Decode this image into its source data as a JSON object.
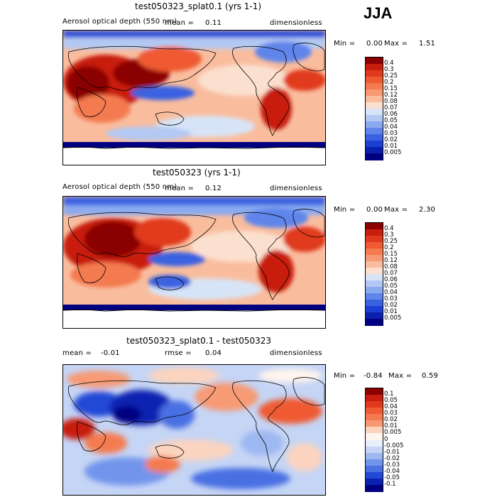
{
  "season": "JJA",
  "panels": [
    {
      "title": "test050323_splat0.1 (yrs 1-1)",
      "variable": "Aerosol optical depth (550 nm)",
      "mean_label": "mean =",
      "mean_value": "0.11",
      "units": "dimensionless",
      "min_label": "Min =",
      "min_value": "0.00",
      "max_label": "Max =",
      "max_value": "1.51",
      "kind": "abs",
      "colorbar": {
        "labels": [
          "0.4",
          "0.3",
          "0.25",
          "0.2",
          "0.15",
          "0.12",
          "0.08",
          "0.07",
          "0.06",
          "0.05",
          "0.04",
          "0.03",
          "0.02",
          "0.01",
          "0.005"
        ],
        "colors": [
          "#8b0000",
          "#c81e0f",
          "#e03a1e",
          "#ef5a32",
          "#f47a50",
          "#f79a74",
          "#f9bd9e",
          "#fbe0cf",
          "#d7e4f7",
          "#b3c9f3",
          "#8aaaf0",
          "#5f85ea",
          "#3a62e0",
          "#1c3ed2",
          "#0b1fae",
          "#000080"
        ]
      }
    },
    {
      "title": "test050323 (yrs 1-1)",
      "variable": "Aerosol optical depth (550 nm)",
      "mean_label": "mean =",
      "mean_value": "0.12",
      "units": "dimensionless",
      "min_label": "Min =",
      "min_value": "0.00",
      "max_label": "Max =",
      "max_value": "2.30",
      "kind": "abs",
      "colorbar": {
        "labels": [
          "0.4",
          "0.3",
          "0.25",
          "0.2",
          "0.15",
          "0.12",
          "0.08",
          "0.07",
          "0.06",
          "0.05",
          "0.04",
          "0.03",
          "0.02",
          "0.01",
          "0.005"
        ],
        "colors": [
          "#8b0000",
          "#c81e0f",
          "#e03a1e",
          "#ef5a32",
          "#f47a50",
          "#f79a74",
          "#f9bd9e",
          "#fbe0cf",
          "#d7e4f7",
          "#b3c9f3",
          "#8aaaf0",
          "#5f85ea",
          "#3a62e0",
          "#1c3ed2",
          "#0b1fae",
          "#000080"
        ]
      }
    },
    {
      "title": "test050323_splat0.1 - test050323",
      "mean_label": "mean =",
      "mean_value": "-0.01",
      "rmse_label": "rmse =",
      "rmse_value": "0.04",
      "units": "dimensionless",
      "min_label": "Min =",
      "min_value": "-0.84",
      "max_label": "Max =",
      "max_value": "0.59",
      "kind": "diff",
      "colorbar": {
        "labels": [
          "0.1",
          "0.05",
          "0.04",
          "0.03",
          "0.02",
          "0.01",
          "0.005",
          "0",
          "-0.005",
          "-0.01",
          "-0.02",
          "-0.03",
          "-0.04",
          "-0.05",
          "-0.1"
        ],
        "colors": [
          "#8b0000",
          "#c81e0f",
          "#e03a1e",
          "#ef5a32",
          "#f47a50",
          "#f79a74",
          "#fbd4bf",
          "#fff5ee",
          "#e8eefb",
          "#c5d5f5",
          "#9eb8f1",
          "#7295ec",
          "#4a70e3",
          "#2448d6",
          "#0b22b0",
          "#000080"
        ]
      }
    }
  ]
}
